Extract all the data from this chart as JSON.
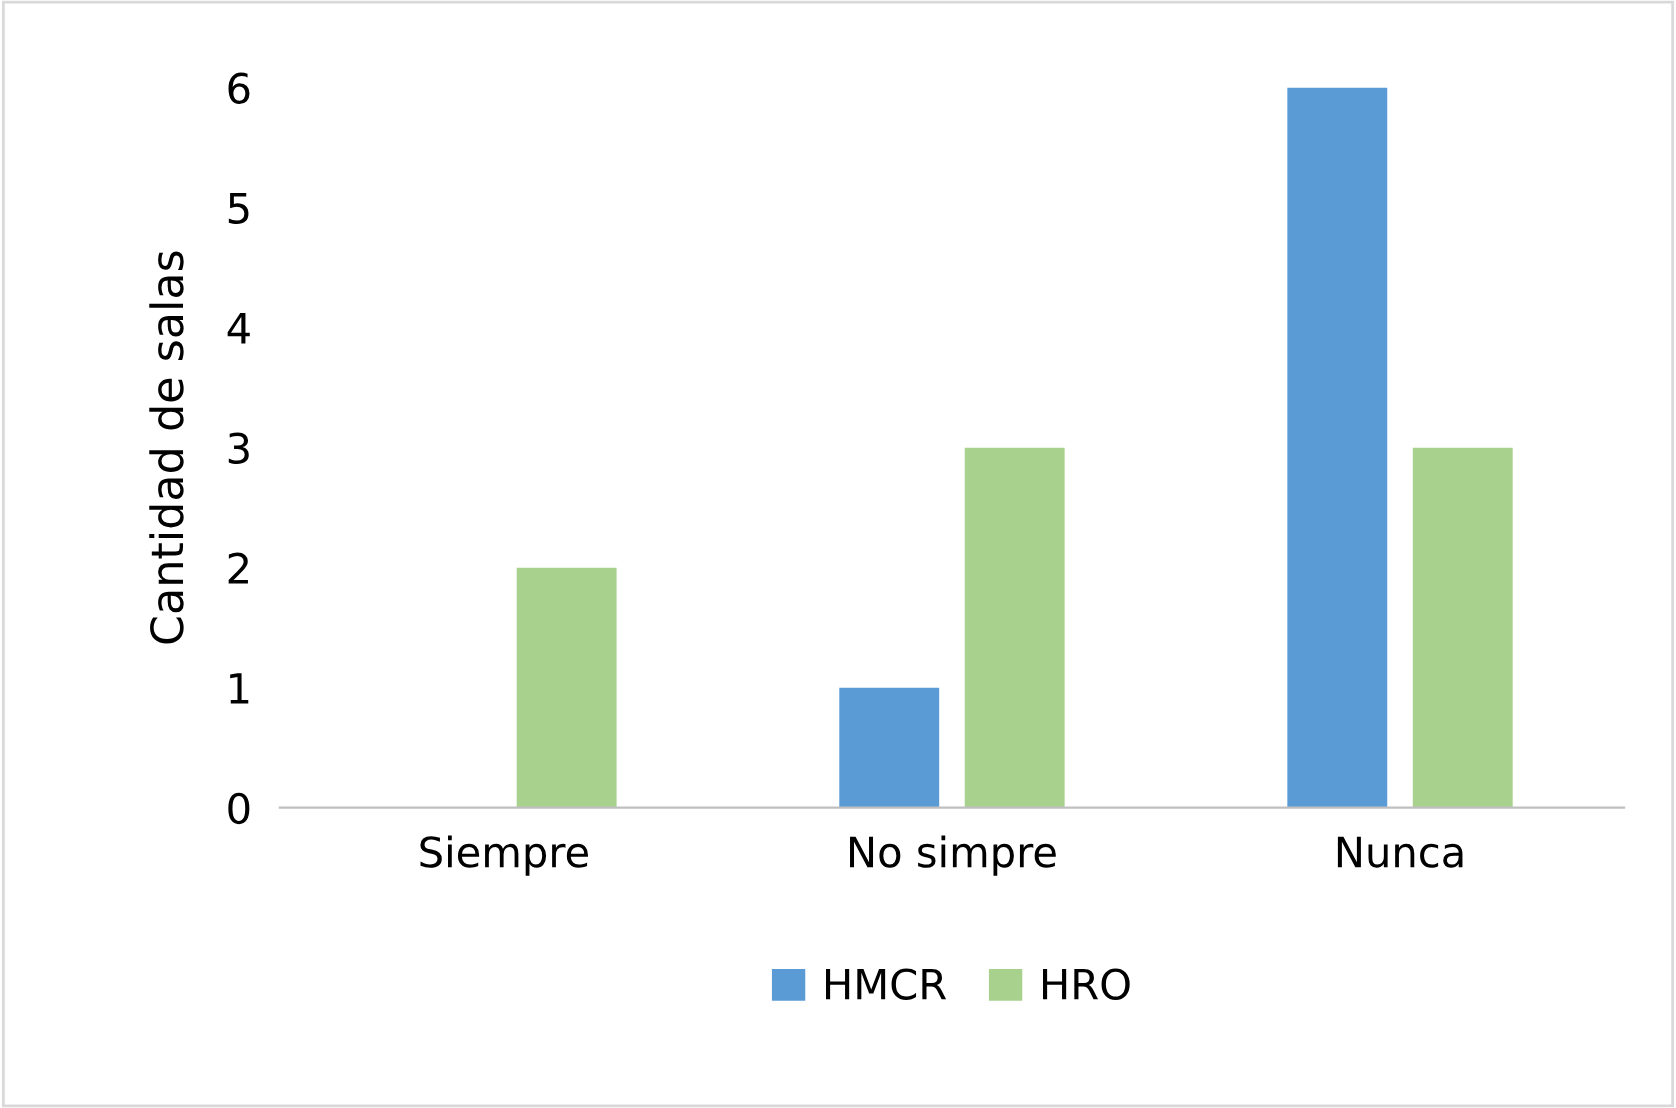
{
  "chart_data": {
    "type": "bar",
    "ylabel": "Cantidad de salas",
    "categories": [
      "Siempre",
      "No simpre",
      "Nunca"
    ],
    "series": [
      {
        "name": "HMCR",
        "color": "#5b9bd5",
        "values": [
          0,
          1,
          6
        ]
      },
      {
        "name": "HRO",
        "color": "#a9d18e",
        "values": [
          2,
          3,
          3
        ]
      }
    ],
    "ylim": [
      0,
      6
    ],
    "yticks": [
      0,
      1,
      2,
      3,
      4,
      5,
      6
    ],
    "grid": false,
    "legend": "bottom"
  }
}
